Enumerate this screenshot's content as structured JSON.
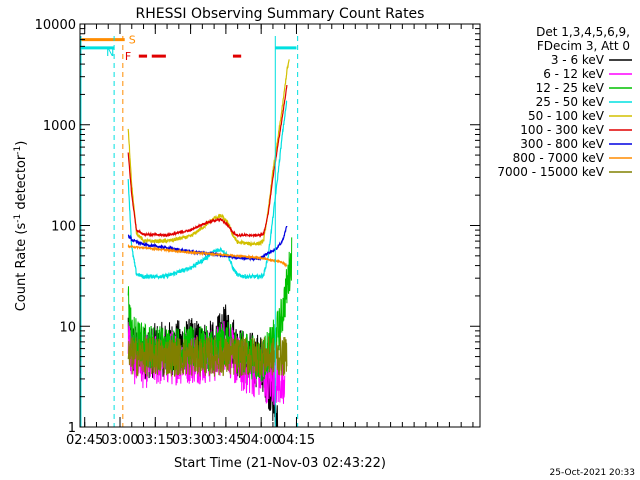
{
  "chart_data": {
    "type": "line",
    "title": "RHESSI Observing Summary Count Rates",
    "xlabel": "Start Time (21-Nov-03 02:43:22)",
    "ylabel_parts": [
      "Count Rate (s",
      "-1",
      " detector",
      "-1",
      ")"
    ],
    "y_scale": "log",
    "ylim": [
      1,
      10000
    ],
    "xlim_min": [
      163,
      333
    ],
    "x_ticks": [
      {
        "min": 165,
        "label": "02:45"
      },
      {
        "min": 180,
        "label": "03:00"
      },
      {
        "min": 195,
        "label": "03:15"
      },
      {
        "min": 210,
        "label": "03:30"
      },
      {
        "min": 225,
        "label": "03:45"
      },
      {
        "min": 240,
        "label": "04:00"
      },
      {
        "min": 255,
        "label": "04:15"
      }
    ],
    "y_ticks": [
      {
        "value": 1,
        "label": "1"
      },
      {
        "value": 10,
        "label": "10"
      },
      {
        "value": 100,
        "label": "100"
      },
      {
        "value": 1000,
        "label": "1000"
      },
      {
        "value": 10000,
        "label": "10000"
      }
    ],
    "legend": {
      "placement": "right",
      "header": [
        "Det 1,3,4,5,6,9,",
        "FDecim 3, Att 0"
      ]
    },
    "series": [
      {
        "name": "3 - 6 keV",
        "color": "#000000",
        "noise": 0.55,
        "points": [
          [
            183.5,
            10
          ],
          [
            185,
            6
          ],
          [
            190,
            5.5
          ],
          [
            200,
            6
          ],
          [
            210,
            6.5
          ],
          [
            220,
            6
          ],
          [
            225,
            9
          ],
          [
            228,
            7
          ],
          [
            232,
            5
          ],
          [
            240,
            4.5
          ],
          [
            244,
            2.5
          ],
          [
            246,
            1.5
          ],
          [
            247,
            1
          ]
        ]
      },
      {
        "name": "6 - 12 keV",
        "color": "#ff00ff",
        "noise": 0.55,
        "points": [
          [
            183.5,
            8
          ],
          [
            185,
            5
          ],
          [
            190,
            4.5
          ],
          [
            200,
            4.8
          ],
          [
            210,
            5
          ],
          [
            220,
            5
          ],
          [
            225,
            7
          ],
          [
            228,
            5
          ],
          [
            232,
            4
          ],
          [
            240,
            3.5
          ],
          [
            244,
            3
          ],
          [
            248,
            3
          ],
          [
            250,
            2
          ]
        ]
      },
      {
        "name": "12 - 25 keV",
        "color": "#00c000",
        "noise": 0.45,
        "points": [
          [
            183.5,
            20
          ],
          [
            185,
            8
          ],
          [
            190,
            6.5
          ],
          [
            200,
            6
          ],
          [
            210,
            6
          ],
          [
            220,
            6
          ],
          [
            225,
            7
          ],
          [
            228,
            6
          ],
          [
            232,
            5.5
          ],
          [
            240,
            4.5
          ],
          [
            244,
            6
          ],
          [
            248,
            10
          ],
          [
            251,
            25
          ],
          [
            253,
            50
          ]
        ]
      },
      {
        "name": "25 - 50 keV",
        "color": "#00e0e0",
        "noise": 0.04,
        "points": [
          [
            183.5,
            280
          ],
          [
            185,
            60
          ],
          [
            187,
            33
          ],
          [
            190,
            31
          ],
          [
            200,
            31.5
          ],
          [
            210,
            38
          ],
          [
            215,
            45
          ],
          [
            220,
            55
          ],
          [
            223,
            58
          ],
          [
            226,
            50
          ],
          [
            228,
            38
          ],
          [
            230,
            32
          ],
          [
            235,
            31
          ],
          [
            239,
            31
          ],
          [
            241,
            32
          ],
          [
            243,
            50
          ],
          [
            245,
            120
          ],
          [
            247,
            300
          ],
          [
            249,
            800
          ],
          [
            251,
            1800
          ]
        ]
      },
      {
        "name": "50 - 100 keV",
        "color": "#d2c000",
        "noise": 0.035,
        "points": [
          [
            183.5,
            900
          ],
          [
            185,
            250
          ],
          [
            187,
            85
          ],
          [
            190,
            70
          ],
          [
            200,
            70
          ],
          [
            210,
            78
          ],
          [
            215,
            95
          ],
          [
            220,
            118
          ],
          [
            223,
            125
          ],
          [
            226,
            105
          ],
          [
            228,
            80
          ],
          [
            230,
            68
          ],
          [
            235,
            66
          ],
          [
            239,
            66
          ],
          [
            241,
            70
          ],
          [
            243,
            140
          ],
          [
            245,
            350
          ],
          [
            247,
            700
          ],
          [
            249,
            1500
          ],
          [
            251,
            3500
          ],
          [
            252,
            4500
          ]
        ]
      },
      {
        "name": "100 - 300 keV",
        "color": "#e00000",
        "noise": 0.02,
        "points": [
          [
            183.5,
            520
          ],
          [
            185,
            200
          ],
          [
            187,
            90
          ],
          [
            190,
            82
          ],
          [
            200,
            80
          ],
          [
            210,
            90
          ],
          [
            215,
            103
          ],
          [
            220,
            112
          ],
          [
            223,
            115
          ],
          [
            226,
            100
          ],
          [
            228,
            85
          ],
          [
            230,
            80
          ],
          [
            239,
            80
          ],
          [
            241,
            82
          ],
          [
            243,
            130
          ],
          [
            245,
            300
          ],
          [
            247,
            600
          ],
          [
            249,
            1200
          ],
          [
            251,
            2500
          ]
        ]
      },
      {
        "name": "300 - 800 keV",
        "color": "#0000e0",
        "noise": 0.025,
        "points": [
          [
            183.5,
            80
          ],
          [
            185,
            72
          ],
          [
            190,
            65
          ],
          [
            200,
            60
          ],
          [
            210,
            55
          ],
          [
            220,
            52
          ],
          [
            225,
            50
          ],
          [
            230,
            48
          ],
          [
            235,
            47
          ],
          [
            239,
            47
          ],
          [
            241,
            50
          ],
          [
            244,
            55
          ],
          [
            247,
            60
          ],
          [
            249,
            70
          ],
          [
            251,
            100
          ]
        ]
      },
      {
        "name": "800 - 7000 keV",
        "color": "#ff8c00",
        "noise": 0.015,
        "points": [
          [
            183.5,
            62
          ],
          [
            190,
            60
          ],
          [
            200,
            57
          ],
          [
            210,
            54
          ],
          [
            220,
            52
          ],
          [
            230,
            50
          ],
          [
            239,
            48
          ],
          [
            241,
            47
          ],
          [
            245,
            45
          ],
          [
            248,
            44
          ],
          [
            251,
            40
          ]
        ]
      },
      {
        "name": "7000 - 15000 keV",
        "color": "#808000",
        "noise": 0.4,
        "points": [
          [
            183.5,
            5
          ],
          [
            190,
            5
          ],
          [
            200,
            5
          ],
          [
            210,
            5
          ],
          [
            220,
            5
          ],
          [
            230,
            5
          ],
          [
            240,
            5
          ],
          [
            245,
            5
          ],
          [
            249,
            5
          ],
          [
            251,
            5
          ]
        ]
      }
    ],
    "markers": {
      "S_label": "S",
      "N_label": "N",
      "F_label": "F",
      "S_segment_min": [
        163,
        182
      ],
      "S_value": 7000,
      "N_segments_min": [
        [
          163,
          177.5
        ],
        [
          246,
          255
        ]
      ],
      "N_value": 5800,
      "F_segments_min": [
        [
          188,
          191.5
        ],
        [
          193.5,
          199.5
        ],
        [
          228,
          231.5
        ]
      ],
      "F_value": 4800,
      "N_vlines_min": [
        163.4,
        177.5,
        246,
        255.5
      ],
      "S_vlines_min": [
        181.2
      ]
    }
  },
  "footer_date": "25-Oct-2021 20:33"
}
